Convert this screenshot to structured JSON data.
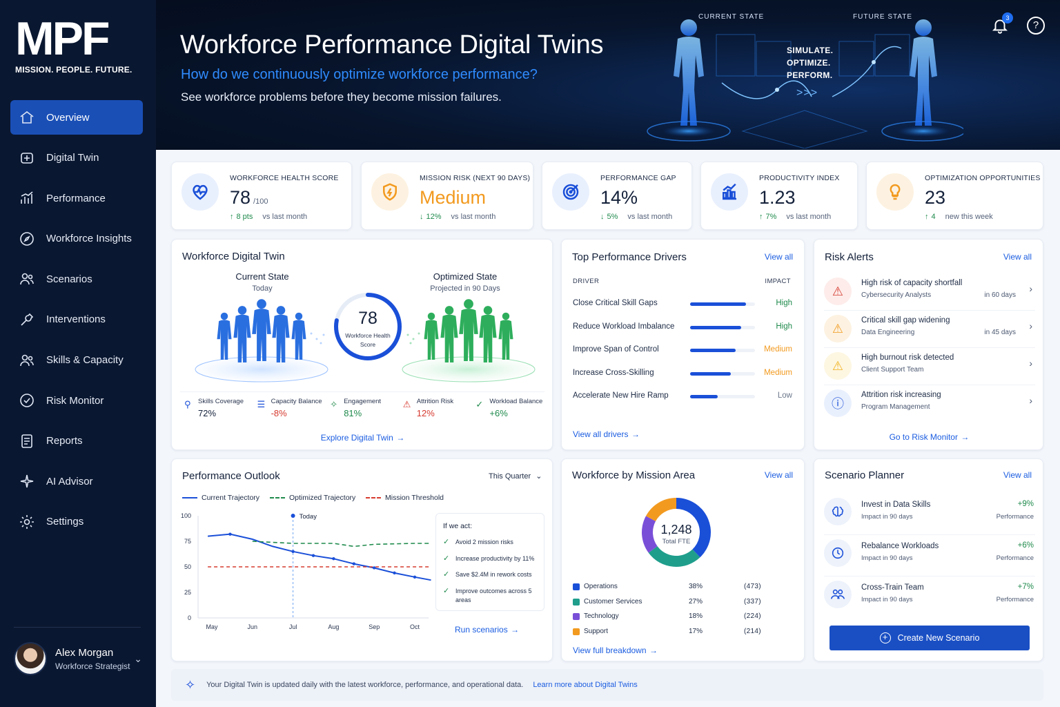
{
  "brand": {
    "mark": "MPF",
    "tagline": "MISSION. PEOPLE. FUTURE."
  },
  "sidebar": {
    "items": [
      {
        "label": "Overview",
        "icon": "home-icon",
        "active": true
      },
      {
        "label": "Digital Twin",
        "icon": "twin-icon"
      },
      {
        "label": "Performance",
        "icon": "bar-chart-icon"
      },
      {
        "label": "Workforce Insights",
        "icon": "compass-icon"
      },
      {
        "label": "Scenarios",
        "icon": "people-icon"
      },
      {
        "label": "Interventions",
        "icon": "wrench-icon"
      },
      {
        "label": "Skills & Capacity",
        "icon": "people-icon"
      },
      {
        "label": "Risk Monitor",
        "icon": "shield-check-icon"
      },
      {
        "label": "Reports",
        "icon": "report-icon"
      },
      {
        "label": "AI Advisor",
        "icon": "sparkle-icon"
      },
      {
        "label": "Settings",
        "icon": "gear-icon"
      }
    ],
    "user": {
      "name": "Alex Morgan",
      "role": "Workforce Strategist"
    }
  },
  "hero": {
    "title": "Workforce Performance Digital Twins",
    "question": "How do we continuously optimize workforce performance?",
    "subtitle": "See workforce problems before they become mission failures.",
    "current_label": "CURRENT STATE",
    "future_label": "FUTURE STATE",
    "sim_line1": "SIMULATE.",
    "sim_line2": "OPTIMIZE.",
    "sim_line3": "PERFORM.",
    "arrows": ">>>",
    "notifications": "3"
  },
  "kpis": [
    {
      "label": "WORKFORCE HEALTH SCORE",
      "value": "78",
      "unit": "/100",
      "arrow": "↑",
      "delta": "8 pts",
      "note": "vs last month",
      "color": "#1a4fd8"
    },
    {
      "label": "MISSION RISK (NEXT 90 DAYS)",
      "value": "Medium",
      "unit": "",
      "arrow": "↓",
      "delta": "12%",
      "note": "vs last month",
      "color": "#f29a1f"
    },
    {
      "label": "PERFORMANCE GAP",
      "value": "14%",
      "unit": "",
      "arrow": "↓",
      "delta": "5%",
      "note": "vs last month",
      "color": "#1a4fd8"
    },
    {
      "label": "PRODUCTIVITY INDEX",
      "value": "1.23",
      "unit": "",
      "arrow": "↑",
      "delta": "7%",
      "note": "vs last month",
      "color": "#1a4fd8"
    },
    {
      "label": "OPTIMIZATION OPPORTUNITIES",
      "value": "23",
      "unit": "",
      "arrow": "↑",
      "delta": "4",
      "note": "new this week",
      "color": "#f29a1f"
    }
  ],
  "twin": {
    "title": "Workforce Digital Twin",
    "current_title": "Current State",
    "current_sub": "Today",
    "optimized_title": "Optimized State",
    "optimized_sub": "Projected in 90 Days",
    "score": "78",
    "score_label_1": "Workforce Health",
    "score_label_2": "Score",
    "score_fraction": 0.78,
    "stats": [
      {
        "label": "Skills Coverage",
        "value": "72%",
        "color": "#14213a",
        "icon": "person-icon"
      },
      {
        "label": "Capacity Balance",
        "value": "-8%",
        "color": "#d63a2f",
        "icon": "balance-icon"
      },
      {
        "label": "Engagement",
        "value": "81%",
        "color": "#1f8a4c",
        "icon": "sparkle-icon"
      },
      {
        "label": "Attrition Risk",
        "value": "12%",
        "color": "#d63a2f",
        "icon": "person-alert-icon"
      },
      {
        "label": "Workload Balance",
        "value": "+6%",
        "color": "#1f8a4c",
        "icon": "check-shield-icon"
      }
    ],
    "explore": "Explore Digital Twin"
  },
  "drivers": {
    "title": "Top Performance Drivers",
    "view_all": "View all",
    "col_driver": "DRIVER",
    "col_impact": "IMPACT",
    "rows": [
      {
        "name": "Close Critical Skill Gaps",
        "impact": "High",
        "level": 0.86,
        "color": "#1f8a4c"
      },
      {
        "name": "Reduce Workload Imbalance",
        "impact": "High",
        "level": 0.79,
        "color": "#1f8a4c"
      },
      {
        "name": "Improve Span of Control",
        "impact": "Medium",
        "level": 0.7,
        "color": "#f29a1f"
      },
      {
        "name": "Increase Cross-Skilling",
        "impact": "Medium",
        "level": 0.63,
        "color": "#f29a1f"
      },
      {
        "name": "Accelerate New Hire Ramp",
        "impact": "Low",
        "level": 0.43,
        "color": "#6b768a"
      }
    ],
    "footer": "View all drivers"
  },
  "alerts": {
    "title": "Risk Alerts",
    "view_all": "View all",
    "rows": [
      {
        "title": "High risk of capacity shortfall",
        "sub": "Cybersecurity Analysts",
        "when": "in 60 days",
        "icon": "alert-triangle-icon",
        "color": "#d63a2f",
        "bg": "#fdecea"
      },
      {
        "title": "Critical skill gap widening",
        "sub": "Data Engineering",
        "when": "in 45 days",
        "icon": "alert-triangle-icon",
        "color": "#f29a1f",
        "bg": "#fdf2e1"
      },
      {
        "title": "High burnout risk detected",
        "sub": "Client Support Team",
        "when": "",
        "icon": "alert-triangle-icon",
        "color": "#f2b31f",
        "bg": "#fdf6e1"
      },
      {
        "title": "Attrition risk increasing",
        "sub": "Program Management",
        "when": "",
        "icon": "info-icon",
        "color": "#1a4fd8",
        "bg": "#e9f0fd"
      }
    ],
    "footer": "Go to Risk Monitor"
  },
  "outlook": {
    "title": "Performance Outlook",
    "period": "This Quarter",
    "legend_current": "Current Trajectory",
    "legend_optimized": "Optimized Trajectory",
    "legend_threshold": "Mission Threshold",
    "today_label": "Today",
    "act_title": "If we act:",
    "act_items": [
      "Avoid 2 mission risks",
      "Increase productivity by 11%",
      "Save $2.4M in rework costs",
      "Improve outcomes across 5 areas"
    ],
    "run": "Run scenarios"
  },
  "chart_data": {
    "type": "line",
    "x": [
      "May",
      "Jun",
      "Jul",
      "Aug",
      "Sep",
      "Oct"
    ],
    "ylim": [
      0,
      100
    ],
    "yticks": [
      "100",
      "75",
      "50",
      "25",
      "0"
    ],
    "grid": false,
    "legend": "top-left",
    "today_x": 2.0,
    "series": [
      {
        "name": "Current Trajectory",
        "color": "#1a4fd8",
        "style": "solid",
        "points": [
          [
            -0.1,
            80
          ],
          [
            0.45,
            82
          ],
          [
            1.0,
            77
          ],
          [
            1.5,
            70
          ],
          [
            2.0,
            65
          ],
          [
            2.5,
            61
          ],
          [
            3.0,
            58
          ],
          [
            3.5,
            53
          ],
          [
            4.0,
            49
          ],
          [
            4.5,
            44
          ],
          [
            5.0,
            40
          ],
          [
            5.4,
            37
          ]
        ]
      },
      {
        "name": "Optimized Trajectory",
        "color": "#1f8a4c",
        "style": "dashed",
        "points": [
          [
            1.0,
            75
          ],
          [
            2.0,
            73
          ],
          [
            3.0,
            73
          ],
          [
            3.5,
            70
          ],
          [
            4.0,
            72
          ],
          [
            5.0,
            73
          ],
          [
            5.4,
            73
          ]
        ]
      },
      {
        "name": "Mission Threshold",
        "color": "#d63a2f",
        "style": "dashed",
        "points": [
          [
            -0.1,
            50
          ],
          [
            5.4,
            50
          ]
        ]
      }
    ]
  },
  "mission": {
    "title": "Workforce by Mission Area",
    "view_all": "View all",
    "total": "1,248",
    "total_label": "Total FTE",
    "rows": [
      {
        "name": "Operations",
        "pct": "38%",
        "count": "(473)",
        "value": 473,
        "color": "#1a4fd8"
      },
      {
        "name": "Customer Services",
        "pct": "27%",
        "count": "(337)",
        "value": 337,
        "color": "#1f9e8c"
      },
      {
        "name": "Technology",
        "pct": "18%",
        "count": "(224)",
        "value": 224,
        "color": "#7a4fd8"
      },
      {
        "name": "Support",
        "pct": "17%",
        "count": "(214)",
        "value": 214,
        "color": "#f29a1f"
      }
    ],
    "footer": "View full breakdown"
  },
  "scenarios": {
    "title": "Scenario Planner",
    "view_all": "View all",
    "rows": [
      {
        "title": "Invest in Data Skills",
        "sub": "Impact in 90 days",
        "value": "+9%",
        "value_sub": "Performance",
        "icon": "brain-icon"
      },
      {
        "title": "Rebalance Workloads",
        "sub": "Impact in 90 days",
        "value": "+6%",
        "value_sub": "Performance",
        "icon": "clock-icon"
      },
      {
        "title": "Cross-Train Team",
        "sub": "Impact in 90 days",
        "value": "+7%",
        "value_sub": "Performance",
        "icon": "team-icon"
      }
    ],
    "create": "Create New Scenario"
  },
  "footer": {
    "text": "Your Digital Twin is updated daily with the latest workforce, performance, and operational data.",
    "link": "Learn more about Digital Twins"
  }
}
